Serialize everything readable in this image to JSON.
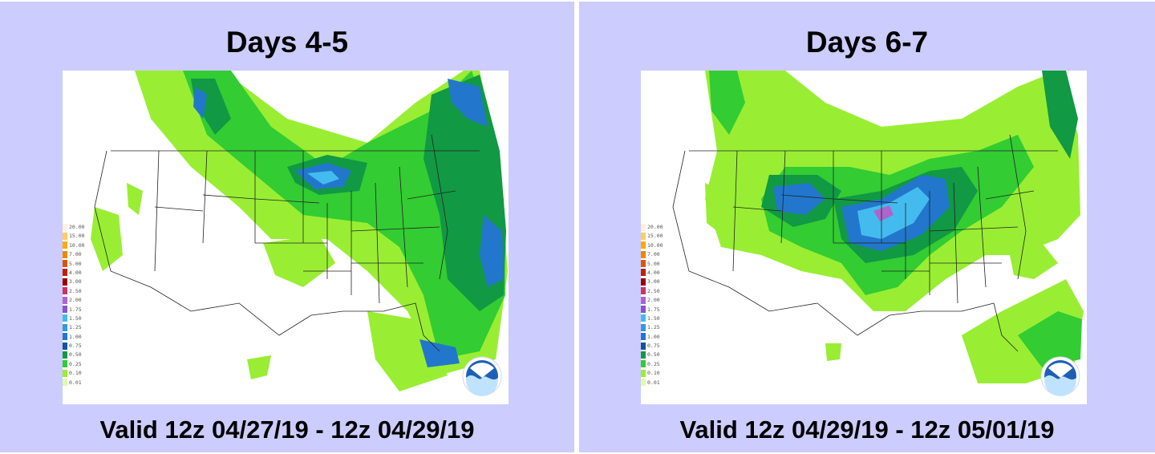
{
  "panels": [
    {
      "title": "Days 4-5",
      "valid": "Valid 12z 04/27/19 - 12z 04/29/19"
    },
    {
      "title": "Days 6-7",
      "valid": "Valid 12z 04/29/19 - 12z 05/01/19"
    }
  ],
  "legend_values": [
    "20.00",
    "15.00",
    "10.00",
    "7.00",
    "5.00",
    "4.00",
    "3.00",
    "2.50",
    "2.00",
    "1.75",
    "1.50",
    "1.25",
    "1.00",
    "0.75",
    "0.50",
    "0.25",
    "0.10",
    "0.01"
  ],
  "colors": {
    "panel_background": "#ccccff",
    "precip_light": "#99ee33",
    "precip_mid": "#33cc33",
    "precip_heavy": "#119944",
    "precip_blue": "#2277cc",
    "precip_cyan": "#44bbee",
    "precip_purple": "#aa66cc"
  },
  "icons": [
    "noaa-logo-icon"
  ]
}
